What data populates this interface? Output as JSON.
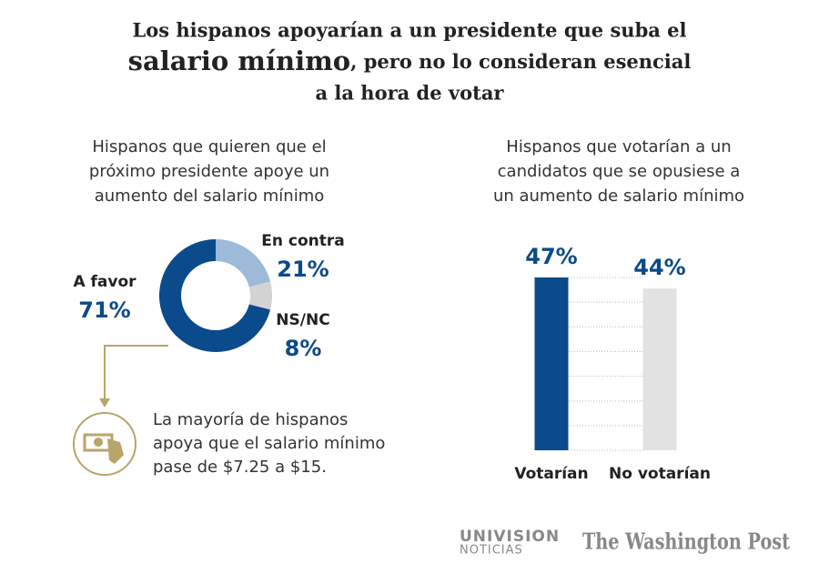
{
  "header": {
    "title_lines": [
      "Los hispanos apoyarían a un presidente que suba el",
      "salario mínimo",
      ", pero no lo consideran esencial",
      "a la hora de votar"
    ]
  },
  "chart_data": [
    {
      "type": "donut",
      "title_lines": [
        "Hispanos que quieren que el",
        "próximo presidente apoye un",
        "aumento del salario mínimo"
      ],
      "categories": [
        "A favor",
        "En contra",
        "NS/NC"
      ],
      "values": [
        71,
        21,
        8
      ],
      "value_labels": [
        "71%",
        "21%",
        "8%"
      ],
      "colors": [
        "#0b4a8b",
        "#9dbad8",
        "#d3d3d3"
      ],
      "annotation_lines": [
        "La mayoría de hispanos",
        "apoya que el salario mínimo",
        "pase de $7.25 a $15."
      ]
    },
    {
      "type": "bar",
      "title_lines": [
        "Hispanos que votarían a un",
        "candidatos que se opusiese a",
        "un aumento de salario mínimo"
      ],
      "categories": [
        "Votarían",
        "No votarían"
      ],
      "values": [
        47,
        44
      ],
      "value_labels": [
        "47%",
        "44%"
      ],
      "colors": [
        "#0b4a8b",
        "#e2e2e2"
      ],
      "ylim": [
        0,
        47
      ]
    }
  ],
  "footer": {
    "sources": [
      "UNIVISION",
      "NOTICIAS",
      "The Washington Post"
    ]
  }
}
